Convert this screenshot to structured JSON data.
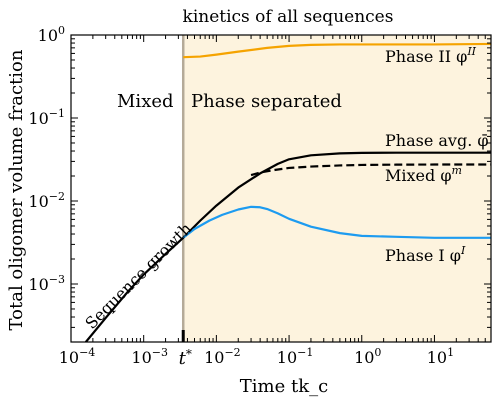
{
  "chart_data": {
    "type": "line",
    "title": "kinetics of all sequences",
    "xlabel": "Time tk_c",
    "ylabel": "Total oligomer volume fraction",
    "x_scale": "log",
    "y_scale": "log",
    "xlim": [
      0.0001,
      60
    ],
    "ylim": [
      0.0002,
      1
    ],
    "grid": false,
    "x_ticks": [
      {
        "value": 0.0001,
        "base": "10",
        "exp": "−4"
      },
      {
        "value": 0.001,
        "base": "10",
        "exp": "−3"
      },
      {
        "value": 0.01,
        "base": "10",
        "exp": "−2"
      },
      {
        "value": 0.1,
        "base": "10",
        "exp": "−1"
      },
      {
        "value": 1,
        "base": "10",
        "exp": "0"
      },
      {
        "value": 10,
        "base": "10",
        "exp": "1"
      }
    ],
    "y_ticks": [
      {
        "value": 0.001,
        "base": "10",
        "exp": "−3"
      },
      {
        "value": 0.01,
        "base": "10",
        "exp": "−2"
      },
      {
        "value": 0.1,
        "base": "10",
        "exp": "−1"
      },
      {
        "value": 1,
        "base": "10",
        "exp": "0"
      }
    ],
    "t_star": {
      "value": 0.0035,
      "label": "t*"
    },
    "regions": [
      {
        "label": "Mixed",
        "x_range": [
          0.0001,
          0.0035
        ],
        "color": "#ffffff"
      },
      {
        "label": "Phase separated",
        "x_range": [
          0.0035,
          60
        ],
        "color": "#fdf3de"
      }
    ],
    "series": [
      {
        "name": "Phase avg. φ̄",
        "color": "#000000",
        "style": "solid",
        "x": [
          0.00016,
          0.0003,
          0.0006,
          0.001,
          0.002,
          0.0035,
          0.006,
          0.01,
          0.02,
          0.04,
          0.07,
          0.1,
          0.2,
          0.5,
          1,
          3,
          10,
          60
        ],
        "y": [
          0.0002,
          0.00039,
          0.0008,
          0.0013,
          0.0023,
          0.0036,
          0.0058,
          0.0088,
          0.0145,
          0.0215,
          0.028,
          0.0318,
          0.0355,
          0.0375,
          0.038,
          0.0382,
          0.0382,
          0.0382
        ]
      },
      {
        "name": "Mixed φ^m",
        "color": "#000000",
        "style": "dashed",
        "x": [
          0.03,
          0.04,
          0.06,
          0.1,
          0.2,
          0.5,
          1,
          3,
          10,
          60
        ],
        "y": [
          0.0205,
          0.022,
          0.0235,
          0.025,
          0.026,
          0.0268,
          0.0272,
          0.0274,
          0.0275,
          0.0275
        ]
      },
      {
        "name": "Phase I φ^I",
        "color": "#1d9bf0",
        "style": "solid",
        "x": [
          0.0035,
          0.005,
          0.008,
          0.012,
          0.02,
          0.03,
          0.04,
          0.05,
          0.07,
          0.1,
          0.2,
          0.5,
          1,
          3,
          10,
          60
        ],
        "y": [
          0.0036,
          0.0046,
          0.0058,
          0.0068,
          0.0079,
          0.0085,
          0.0084,
          0.008,
          0.0071,
          0.0061,
          0.0049,
          0.0041,
          0.0038,
          0.0037,
          0.0036,
          0.0036
        ]
      },
      {
        "name": "Phase II φ^II",
        "color": "#f5a300",
        "style": "solid",
        "x": [
          0.0035,
          0.006,
          0.01,
          0.02,
          0.05,
          0.1,
          0.2,
          0.5,
          1,
          3,
          10,
          60
        ],
        "y": [
          0.54,
          0.55,
          0.58,
          0.63,
          0.7,
          0.74,
          0.76,
          0.77,
          0.77,
          0.77,
          0.77,
          0.78
        ]
      }
    ],
    "annotations": [
      {
        "text": "Mixed"
      },
      {
        "text": "Phase separated"
      },
      {
        "text": "Sequence growth"
      },
      {
        "text": "Phase II φ",
        "sup": "II",
        "color": "#f5a300"
      },
      {
        "text": "Phase avg. φ̄",
        "color": "#000000"
      },
      {
        "text": "Mixed φ",
        "sup": "m",
        "color": "#000000"
      },
      {
        "text": "Phase I φ",
        "sup": "I",
        "color": "#1d9bf0"
      }
    ]
  }
}
